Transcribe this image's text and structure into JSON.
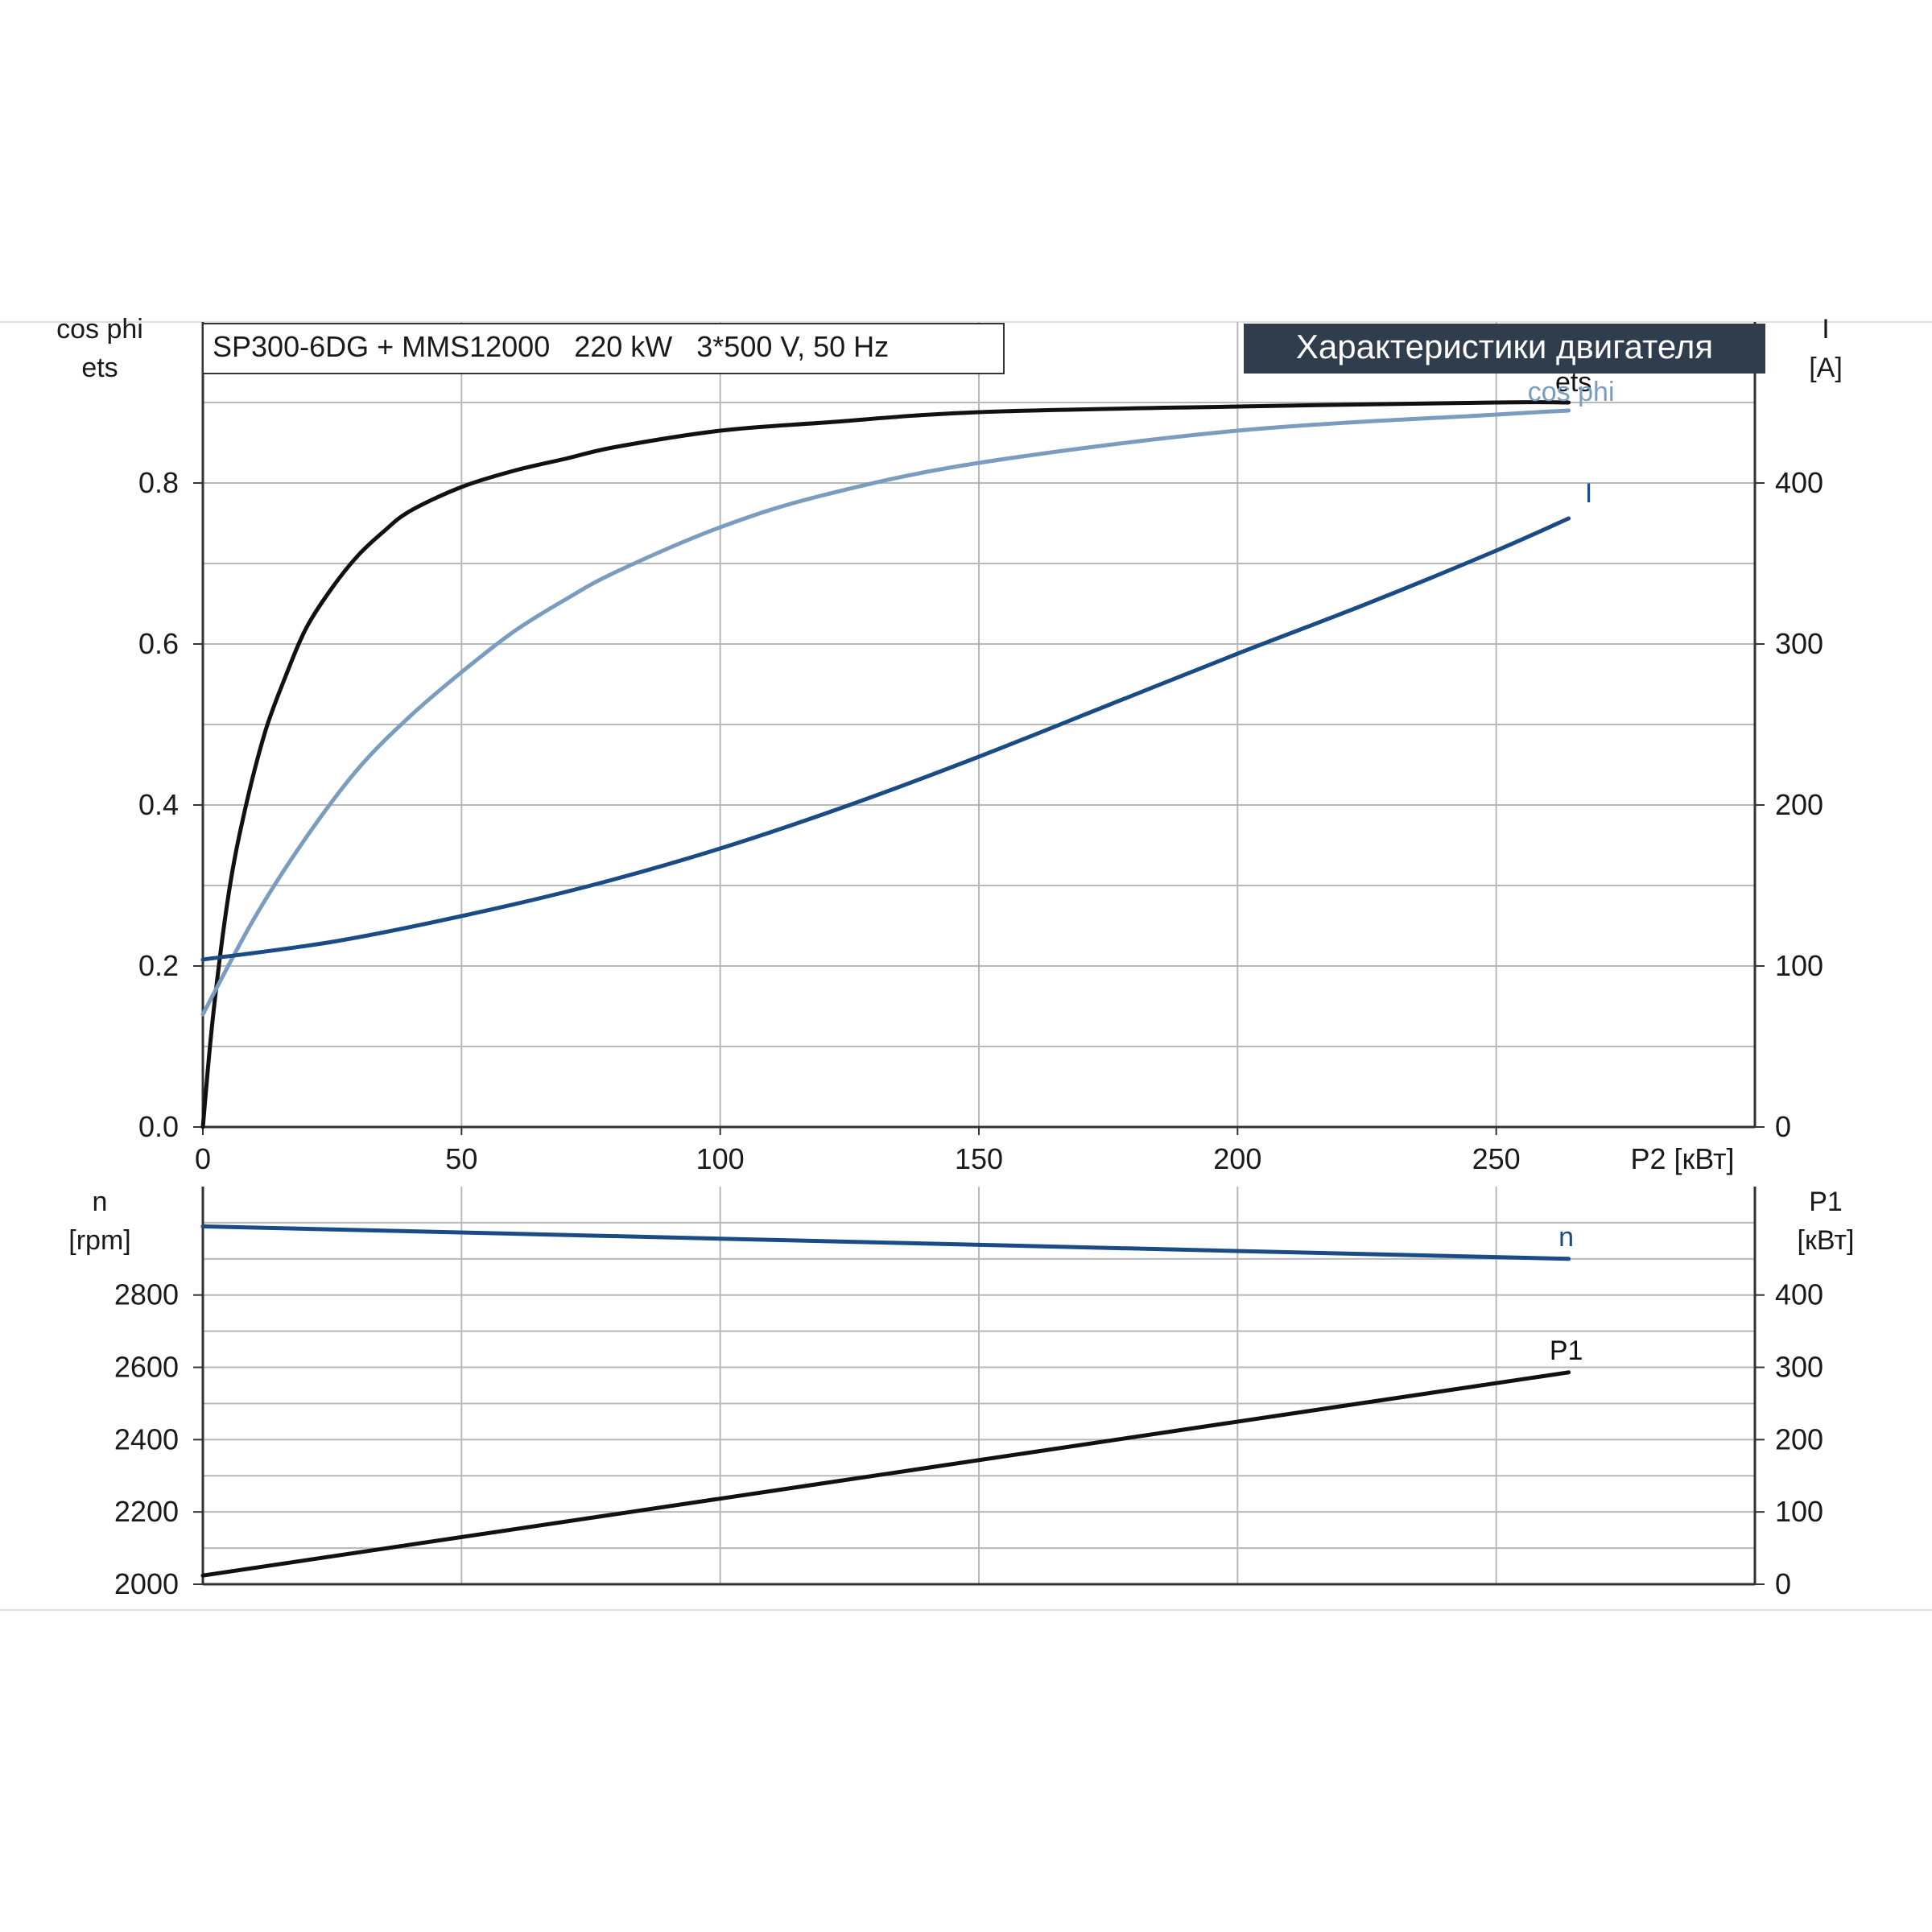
{
  "colors": {
    "eta": "#111111",
    "cos_phi": "#7a9dbf",
    "current": "#1a4b85",
    "speed": "#1a4b85",
    "p1": "#111111",
    "title_bg": "#2f3d4d",
    "title_fg": "#ffffff",
    "grid": "#b8b8b8"
  },
  "header": {
    "pump_info": "SP300-6DG + MMS12000   220 kW   3*500 V, 50 Hz",
    "chart_title": "Характеристики двигателя"
  },
  "chart_data": [
    {
      "type": "line",
      "title": "",
      "x": {
        "label": "P2 [кВт]",
        "min": 0,
        "max": 300,
        "ticks": [
          0,
          50,
          100,
          150,
          200,
          250
        ],
        "tick_labels": [
          "0",
          "50",
          "100",
          "150",
          "200",
          "250"
        ]
      },
      "y_left": {
        "label_lines": [
          "cos phi",
          "ets"
        ],
        "min": 0,
        "max": 1.0,
        "ticks": [
          0,
          0.2,
          0.4,
          0.6,
          0.8
        ],
        "tick_labels": [
          "0.0",
          "0.2",
          "0.4",
          "0.6",
          "0.8"
        ]
      },
      "y_right": {
        "label_lines": [
          "I",
          "[A]"
        ],
        "min": 0,
        "max": 500,
        "ticks": [
          0,
          100,
          200,
          300,
          400
        ],
        "tick_labels": [
          "0",
          "100",
          "200",
          "300",
          "400"
        ]
      },
      "grid": true,
      "series": [
        {
          "name": "ets",
          "axis": "left",
          "color_key": "eta",
          "x": [
            0,
            2,
            5,
            8,
            12,
            16,
            20,
            25,
            30,
            35,
            40,
            50,
            60,
            70,
            80,
            100,
            120,
            150,
            200,
            250,
            264
          ],
          "y": [
            0,
            0.14,
            0.29,
            0.39,
            0.49,
            0.56,
            0.62,
            0.67,
            0.71,
            0.74,
            0.765,
            0.795,
            0.815,
            0.83,
            0.845,
            0.865,
            0.875,
            0.888,
            0.895,
            0.9,
            0.9
          ]
        },
        {
          "name": "cos phi",
          "axis": "left",
          "color_key": "cos_phi",
          "x": [
            0,
            10,
            20,
            30,
            40,
            50,
            60,
            70,
            80,
            100,
            120,
            150,
            200,
            250,
            264
          ],
          "y": [
            0.14,
            0.26,
            0.36,
            0.445,
            0.51,
            0.565,
            0.615,
            0.655,
            0.69,
            0.745,
            0.785,
            0.825,
            0.865,
            0.885,
            0.89
          ]
        },
        {
          "name": "I",
          "axis": "right",
          "color_key": "current",
          "x": [
            0,
            25,
            50,
            75,
            100,
            125,
            150,
            175,
            200,
            225,
            250,
            264
          ],
          "y": [
            104,
            115,
            131,
            150,
            173,
            200,
            230,
            262,
            294,
            325,
            358,
            378
          ]
        }
      ]
    },
    {
      "type": "line",
      "title": "",
      "x": {
        "label": "",
        "min": 0,
        "max": 300,
        "ticks": [
          0,
          50,
          100,
          150,
          200,
          250
        ],
        "tick_labels": []
      },
      "y_left": {
        "label_lines": [
          "n",
          "[rpm]"
        ],
        "min": 2000,
        "max": 3100,
        "ticks": [
          2000,
          2200,
          2400,
          2600,
          2800
        ],
        "tick_labels": [
          "2000",
          "2200",
          "2400",
          "2600",
          "2800"
        ]
      },
      "y_right": {
        "label_lines": [
          "P1",
          "[кВт]"
        ],
        "min": 0,
        "max": 550,
        "ticks": [
          0,
          100,
          200,
          300,
          400
        ],
        "tick_labels": [
          "0",
          "100",
          "200",
          "300",
          "400"
        ]
      },
      "grid": true,
      "series": [
        {
          "name": "n",
          "axis": "left",
          "color_key": "speed",
          "x": [
            0,
            264
          ],
          "y": [
            2990,
            2900
          ]
        },
        {
          "name": "P1",
          "axis": "right",
          "color_key": "p1",
          "x": [
            0,
            264
          ],
          "y": [
            12,
            293
          ]
        }
      ]
    }
  ]
}
